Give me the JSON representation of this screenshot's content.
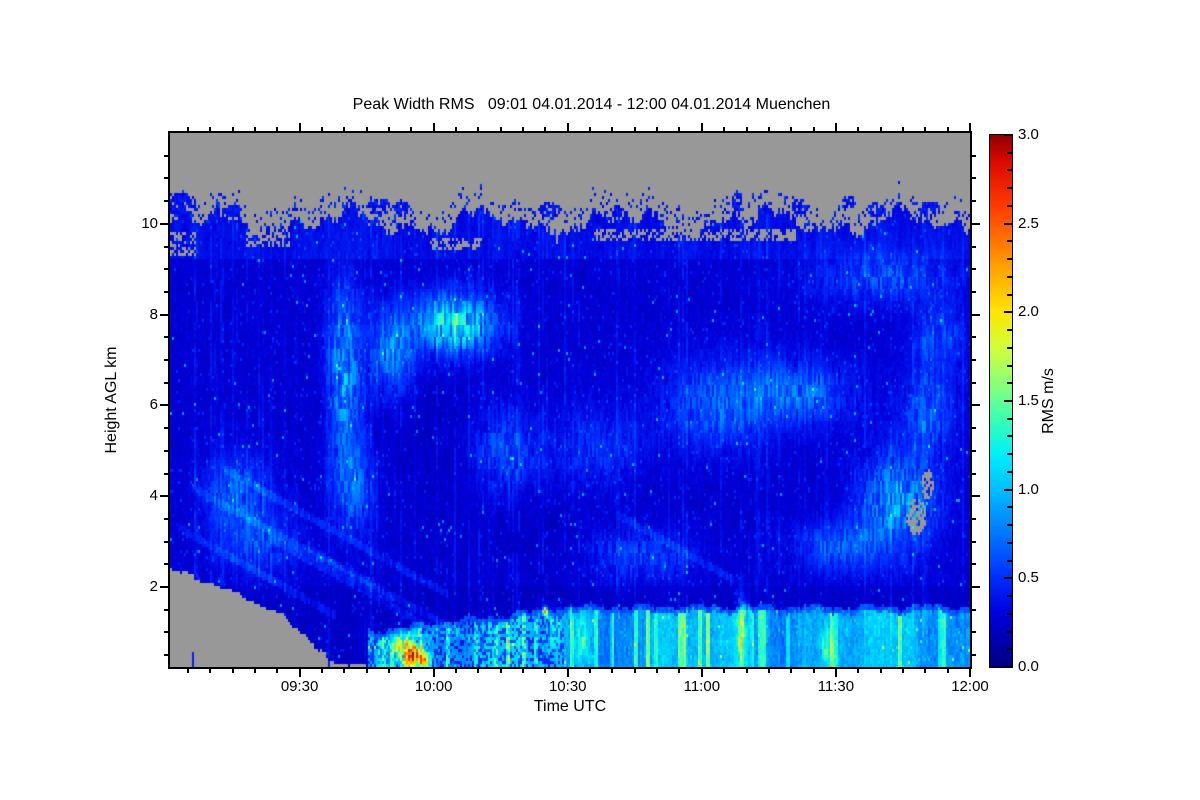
{
  "chart_data": {
    "type": "heatmap",
    "title": "Peak Width RMS   09:01 04.01.2014 - 12:00 04.01.2014 Muenchen",
    "xlabel": "Time UTC",
    "ylabel": "Height AGL km",
    "x_axis": {
      "start_time": "09:01",
      "end_time": "12:00",
      "duration_min": 179,
      "ticks": [
        {
          "min": 29,
          "label": "09:30"
        },
        {
          "min": 59,
          "label": "10:00"
        },
        {
          "min": 89,
          "label": "10:30"
        },
        {
          "min": 119,
          "label": "11:00"
        },
        {
          "min": 149,
          "label": "11:30"
        },
        {
          "min": 179,
          "label": "12:00"
        }
      ],
      "minor_start_min": 4,
      "minor_step_min": 5
    },
    "y_axis": {
      "min_km": 0.24,
      "max_km": 12.0,
      "ticks": [
        {
          "km": 2,
          "label": "2"
        },
        {
          "km": 4,
          "label": "4"
        },
        {
          "km": 6,
          "label": "6"
        },
        {
          "km": 8,
          "label": "8"
        },
        {
          "km": 10,
          "label": "10"
        }
      ],
      "minor_step_km": 0.5
    },
    "colorbar": {
      "label": "RMS m/s",
      "min": 0.0,
      "max": 3.0,
      "minor_tick_step": 0.1,
      "tick_labels": [
        {
          "v": 0.0,
          "label": "0.0"
        },
        {
          "v": 0.5,
          "label": "0.5"
        },
        {
          "v": 1.0,
          "label": "1.0"
        },
        {
          "v": 1.5,
          "label": "1.5"
        },
        {
          "v": 2.0,
          "label": "2.0"
        },
        {
          "v": 2.5,
          "label": "2.5"
        },
        {
          "v": 3.0,
          "label": "3.0"
        }
      ],
      "stops": [
        [
          0.0,
          "#000082"
        ],
        [
          0.3,
          "#0000dc"
        ],
        [
          0.5,
          "#002dff"
        ],
        [
          0.75,
          "#0078ff"
        ],
        [
          1.0,
          "#00beff"
        ],
        [
          1.2,
          "#00f0fa"
        ],
        [
          1.4,
          "#3cffb4"
        ],
        [
          1.6,
          "#8cff78"
        ],
        [
          1.8,
          "#d2ff3c"
        ],
        [
          2.0,
          "#ffe600"
        ],
        [
          2.3,
          "#ff9600"
        ],
        [
          2.6,
          "#ff3c00"
        ],
        [
          2.85,
          "#dc0a00"
        ],
        [
          3.0,
          "#910000"
        ]
      ]
    },
    "nodata_color": "#989898",
    "frame_color": "#000000",
    "features": {
      "cloud_top_base_km": 10.02,
      "terrain_wedge_km": [
        [
          0,
          2.45
        ],
        [
          9,
          2.08
        ],
        [
          18,
          1.72
        ],
        [
          25,
          1.38
        ],
        [
          29,
          1.02
        ],
        [
          33,
          0.66
        ],
        [
          36,
          0.38
        ],
        [
          40,
          0.3
        ],
        [
          44,
          0.26
        ]
      ],
      "boundary_layer_top_km": 1.45,
      "boundary_layer_start_min": 44,
      "cloud_blobs": [
        [
          2,
          10.42,
          4,
          0.26
        ],
        [
          14,
          10.28,
          2,
          0.15
        ],
        [
          47,
          10.38,
          3,
          0.2
        ],
        [
          52,
          10.32,
          2,
          0.16
        ],
        [
          85,
          10.3,
          2.5,
          0.18
        ],
        [
          100,
          10.25,
          1.5,
          0.14
        ],
        [
          127,
          10.42,
          1.2,
          0.3
        ],
        [
          133,
          10.3,
          1.5,
          0.15
        ],
        [
          141,
          10.38,
          2,
          0.18
        ],
        [
          152,
          10.48,
          1.5,
          0.15
        ],
        [
          158,
          10.3,
          2,
          0.15
        ],
        [
          170,
          10.33,
          2.5,
          0.18
        ]
      ],
      "gray_holes": [
        [
          95,
          140,
          9.62,
          9.88,
          0.55
        ],
        [
          58,
          70,
          9.45,
          9.7,
          0.45
        ],
        [
          17,
          27,
          9.5,
          9.85,
          0.5
        ],
        [
          0,
          6,
          9.3,
          9.8,
          0.5
        ]
      ],
      "gray_ellipses": [
        [
          167,
          3.55,
          2.2,
          0.4
        ],
        [
          169.5,
          4.25,
          1.3,
          0.33
        ]
      ],
      "patches": [
        [
          64,
          7.8,
          6,
          0.45,
          1.15
        ],
        [
          50,
          7.2,
          3.5,
          0.7,
          0.6
        ],
        [
          39,
          6.8,
          2.5,
          1.3,
          0.75
        ],
        [
          41,
          4.3,
          3,
          0.8,
          0.5
        ],
        [
          15,
          4.1,
          5,
          0.6,
          0.45
        ],
        [
          20,
          3.0,
          6,
          0.5,
          0.35
        ],
        [
          75,
          5.0,
          5,
          0.7,
          0.4
        ],
        [
          95,
          5.0,
          8,
          0.7,
          0.3
        ],
        [
          105,
          2.7,
          9,
          0.45,
          0.35
        ],
        [
          122,
          6.0,
          8,
          0.7,
          0.45
        ],
        [
          140,
          6.3,
          9,
          0.5,
          0.5
        ],
        [
          150,
          2.9,
          7,
          0.4,
          0.45
        ],
        [
          160,
          8.8,
          11,
          0.4,
          0.4
        ],
        [
          163,
          3.9,
          6,
          0.8,
          0.7
        ],
        [
          170,
          5.9,
          4,
          0.6,
          0.45
        ],
        [
          172,
          7.5,
          4,
          0.5,
          0.4
        ],
        [
          54,
          0.5,
          2,
          0.22,
          1.9
        ],
        [
          51,
          0.78,
          1.2,
          0.15,
          1.0
        ],
        [
          57,
          0.4,
          1,
          0.12,
          1.3
        ],
        [
          92,
          0.85,
          1.2,
          0.35,
          0.65
        ],
        [
          128,
          0.9,
          0.8,
          0.55,
          0.95
        ],
        [
          147,
          0.7,
          1,
          0.3,
          0.6
        ],
        [
          86,
          1.05,
          1,
          0.3,
          0.5
        ],
        [
          84,
          1.45,
          0.4,
          0.08,
          1.5
        ],
        [
          92,
          3.4,
          22,
          1.1,
          -0.07
        ],
        [
          58,
          5.6,
          18,
          1.0,
          -0.05
        ]
      ],
      "fall_streaks": [
        [
          5,
          4.2,
          45
        ],
        [
          12,
          4.6,
          50
        ],
        [
          2,
          3.3,
          35
        ],
        [
          22,
          3.1,
          40
        ],
        [
          30,
          2.9,
          42
        ],
        [
          100,
          3.6,
          26
        ]
      ],
      "fall_slope_km_per_min": 0.055
    }
  }
}
